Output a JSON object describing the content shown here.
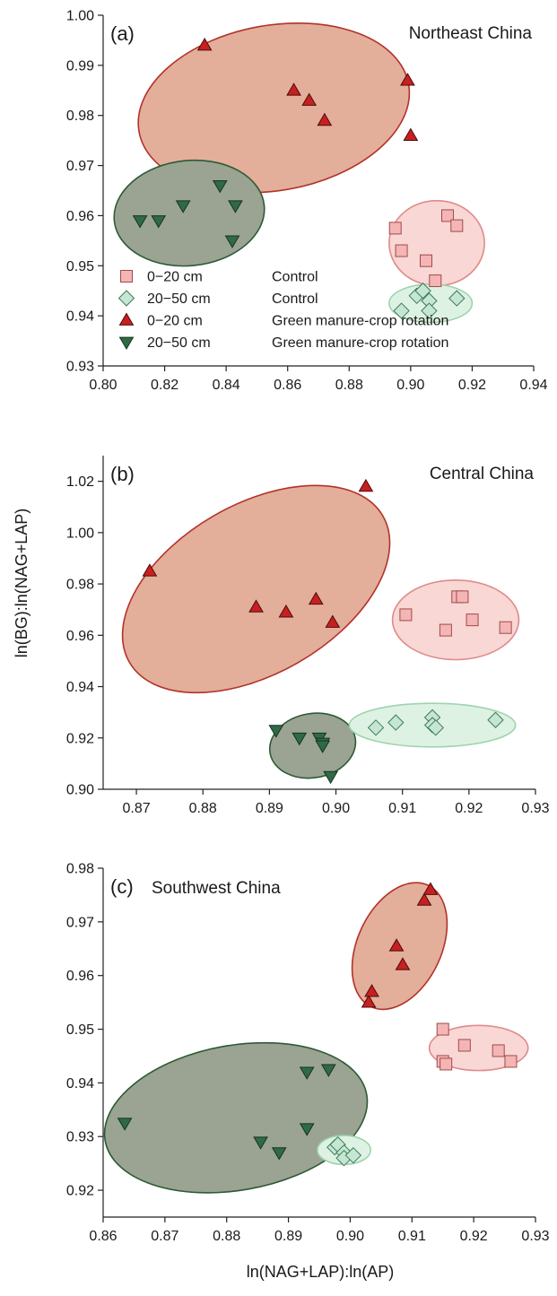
{
  "figure": {
    "ylabel": "ln(BG):ln(NAG+LAP)",
    "xlabel": "ln(NAG+LAP):ln(AP)"
  },
  "legend": {
    "items": [
      {
        "key": "ctrl_top",
        "depth": "0−20 cm",
        "treatment": "Control"
      },
      {
        "key": "ctrl_sub",
        "depth": "20−50 cm",
        "treatment": "Control"
      },
      {
        "key": "gm_top",
        "depth": "0−20 cm",
        "treatment": "Green manure-crop rotation"
      },
      {
        "key": "gm_sub",
        "depth": "20−50 cm",
        "treatment": "Green manure-crop rotation"
      }
    ]
  },
  "styles": {
    "ctrl_top": {
      "marker": "square",
      "fill": "#f4b5b5",
      "stroke": "#a14a4a"
    },
    "ctrl_sub": {
      "marker": "diamond",
      "fill": "#c4e6d2",
      "stroke": "#3f7a5a"
    },
    "gm_top": {
      "marker": "triangle-up",
      "fill": "#c8201e",
      "stroke": "#4a0c0c"
    },
    "gm_sub": {
      "marker": "triangle-down",
      "fill": "#2f6a45",
      "stroke": "#153321"
    },
    "ellipse_ctrl_top": {
      "fill": "#f8d7d5",
      "stroke": "#e08a8a"
    },
    "ellipse_ctrl_sub": {
      "fill": "#def2e4",
      "stroke": "#9ed3ac"
    },
    "ellipse_gm_top": {
      "fill": "#e3ae9a",
      "stroke": "#b3322a"
    },
    "ellipse_gm_sub": {
      "fill": "#9ba393",
      "stroke": "#2c5b35"
    }
  },
  "chart_data": [
    {
      "type": "scatter",
      "panel": "(a)",
      "title": "Northeast China",
      "xlim": [
        0.8,
        0.94
      ],
      "ylim": [
        0.93,
        1.0
      ],
      "xticks": [
        "0.80",
        "0.82",
        "0.84",
        "0.86",
        "0.88",
        "0.90",
        "0.92",
        "0.94"
      ],
      "yticks": [
        "0.93",
        "0.94",
        "0.95",
        "0.96",
        "0.97",
        "0.98",
        "0.99",
        "1.00"
      ],
      "series": [
        {
          "key": "ctrl_top",
          "name": "0−20 cm Control",
          "points": [
            [
              0.895,
              0.9575
            ],
            [
              0.897,
              0.953
            ],
            [
              0.905,
              0.951
            ],
            [
              0.912,
              0.96
            ],
            [
              0.915,
              0.958
            ],
            [
              0.908,
              0.947
            ]
          ]
        },
        {
          "key": "ctrl_sub",
          "name": "20−50 cm Control",
          "points": [
            [
              0.897,
              0.941
            ],
            [
              0.902,
              0.944
            ],
            [
              0.904,
              0.945
            ],
            [
              0.906,
              0.943
            ],
            [
              0.906,
              0.941
            ],
            [
              0.915,
              0.9435
            ]
          ]
        },
        {
          "key": "gm_top",
          "name": "0−20 cm Green manure-crop rotation",
          "points": [
            [
              0.833,
              0.994
            ],
            [
              0.862,
              0.985
            ],
            [
              0.867,
              0.983
            ],
            [
              0.872,
              0.979
            ],
            [
              0.899,
              0.987
            ],
            [
              0.9,
              0.976
            ]
          ]
        },
        {
          "key": "gm_sub",
          "name": "20−50 cm Green manure-crop rotation",
          "points": [
            [
              0.812,
              0.959
            ],
            [
              0.818,
              0.959
            ],
            [
              0.826,
              0.962
            ],
            [
              0.838,
              0.966
            ],
            [
              0.843,
              0.962
            ],
            [
              0.842,
              0.955
            ]
          ]
        }
      ],
      "ellipses": [
        {
          "key": "gm_top",
          "cx": 0.8555,
          "cy": 0.9815,
          "rx": 0.0445,
          "ry": 0.0165,
          "angle": -10
        },
        {
          "key": "gm_sub",
          "cx": 0.828,
          "cy": 0.9605,
          "rx": 0.0245,
          "ry": 0.0105,
          "angle": -6
        },
        {
          "key": "ctrl_top",
          "cx": 0.9085,
          "cy": 0.9545,
          "rx": 0.0155,
          "ry": 0.0085,
          "angle": 0
        },
        {
          "key": "ctrl_sub",
          "cx": 0.9065,
          "cy": 0.9425,
          "rx": 0.0135,
          "ry": 0.0038,
          "angle": 0
        }
      ]
    },
    {
      "type": "scatter",
      "panel": "(b)",
      "title": "Central China",
      "xlim": [
        0.865,
        0.93
      ],
      "ylim": [
        0.9,
        1.03
      ],
      "xticks": [
        "0.87",
        "0.88",
        "0.89",
        "0.90",
        "0.91",
        "0.92",
        "0.93"
      ],
      "yticks": [
        "0.90",
        "0.92",
        "0.94",
        "0.96",
        "0.98",
        "1.00",
        "1.02"
      ],
      "series": [
        {
          "key": "ctrl_top",
          "name": "0−20 cm Control",
          "points": [
            [
              0.9105,
              0.968
            ],
            [
              0.9165,
              0.962
            ],
            [
              0.9183,
              0.975
            ],
            [
              0.919,
              0.975
            ],
            [
              0.9205,
              0.966
            ],
            [
              0.9255,
              0.963
            ]
          ]
        },
        {
          "key": "ctrl_sub",
          "name": "20−50 cm Control",
          "points": [
            [
              0.906,
              0.924
            ],
            [
              0.909,
              0.926
            ],
            [
              0.9145,
              0.928
            ],
            [
              0.9145,
              0.925
            ],
            [
              0.915,
              0.924
            ],
            [
              0.924,
              0.927
            ]
          ]
        },
        {
          "key": "gm_top",
          "name": "0−20 cm Green manure-crop rotation",
          "points": [
            [
              0.872,
              0.985
            ],
            [
              0.888,
              0.971
            ],
            [
              0.8925,
              0.969
            ],
            [
              0.897,
              0.974
            ],
            [
              0.8995,
              0.965
            ],
            [
              0.9045,
              1.018
            ]
          ]
        },
        {
          "key": "gm_sub",
          "name": "20−50 cm Green manure-crop rotation",
          "points": [
            [
              0.891,
              0.923
            ],
            [
              0.8945,
              0.92
            ],
            [
              0.8975,
              0.92
            ],
            [
              0.898,
              0.918
            ],
            [
              0.898,
              0.917
            ],
            [
              0.8992,
              0.905
            ]
          ]
        }
      ],
      "ellipses": [
        {
          "key": "gm_top",
          "cx": 0.888,
          "cy": 0.978,
          "rx": 0.022,
          "ry": 0.033,
          "angle": -30
        },
        {
          "key": "gm_sub",
          "cx": 0.8965,
          "cy": 0.917,
          "rx": 0.0065,
          "ry": 0.0125,
          "angle": -10
        },
        {
          "key": "ctrl_top",
          "cx": 0.918,
          "cy": 0.966,
          "rx": 0.0095,
          "ry": 0.0155,
          "angle": 0
        },
        {
          "key": "ctrl_sub",
          "cx": 0.9145,
          "cy": 0.925,
          "rx": 0.0125,
          "ry": 0.0085,
          "angle": 0
        }
      ]
    },
    {
      "type": "scatter",
      "panel": "(c)",
      "title": "Southwest China",
      "xlim": [
        0.86,
        0.93
      ],
      "ylim": [
        0.915,
        0.98
      ],
      "xticks": [
        "0.86",
        "0.87",
        "0.88",
        "0.89",
        "0.90",
        "0.91",
        "0.92",
        "0.93"
      ],
      "yticks": [
        "0.92",
        "0.93",
        "0.94",
        "0.95",
        "0.96",
        "0.97",
        "0.98"
      ],
      "series": [
        {
          "key": "ctrl_top",
          "name": "0−20 cm Control",
          "points": [
            [
              0.915,
              0.95
            ],
            [
              0.915,
              0.944
            ],
            [
              0.9155,
              0.9435
            ],
            [
              0.9185,
              0.947
            ],
            [
              0.924,
              0.946
            ],
            [
              0.926,
              0.944
            ]
          ]
        },
        {
          "key": "ctrl_sub",
          "name": "20−50 cm Control",
          "points": [
            [
              0.8975,
              0.928
            ],
            [
              0.898,
              0.9285
            ],
            [
              0.899,
              0.927
            ],
            [
              0.899,
              0.926
            ],
            [
              0.9005,
              0.9265
            ]
          ]
        },
        {
          "key": "gm_top",
          "name": "0−20 cm Green manure-crop rotation",
          "points": [
            [
              0.903,
              0.955
            ],
            [
              0.9035,
              0.957
            ],
            [
              0.9075,
              0.9655
            ],
            [
              0.9085,
              0.962
            ],
            [
              0.912,
              0.974
            ],
            [
              0.913,
              0.976
            ]
          ]
        },
        {
          "key": "gm_sub",
          "name": "20−50 cm Green manure-crop rotation",
          "points": [
            [
              0.8635,
              0.9325
            ],
            [
              0.8855,
              0.929
            ],
            [
              0.8885,
              0.927
            ],
            [
              0.893,
              0.9315
            ],
            [
              0.893,
              0.942
            ],
            [
              0.8965,
              0.9425
            ]
          ]
        }
      ],
      "ellipses": [
        {
          "key": "gm_top",
          "cx": 0.908,
          "cy": 0.9655,
          "rx": 0.0068,
          "ry": 0.0125,
          "angle": 25
        },
        {
          "key": "gm_sub",
          "cx": 0.8815,
          "cy": 0.9335,
          "rx": 0.0215,
          "ry": 0.0135,
          "angle": -10
        },
        {
          "key": "ctrl_top",
          "cx": 0.9208,
          "cy": 0.9465,
          "rx": 0.008,
          "ry": 0.0042,
          "angle": 0
        },
        {
          "key": "ctrl_sub",
          "cx": 0.899,
          "cy": 0.9275,
          "rx": 0.0043,
          "ry": 0.0027,
          "angle": 0
        }
      ]
    }
  ]
}
